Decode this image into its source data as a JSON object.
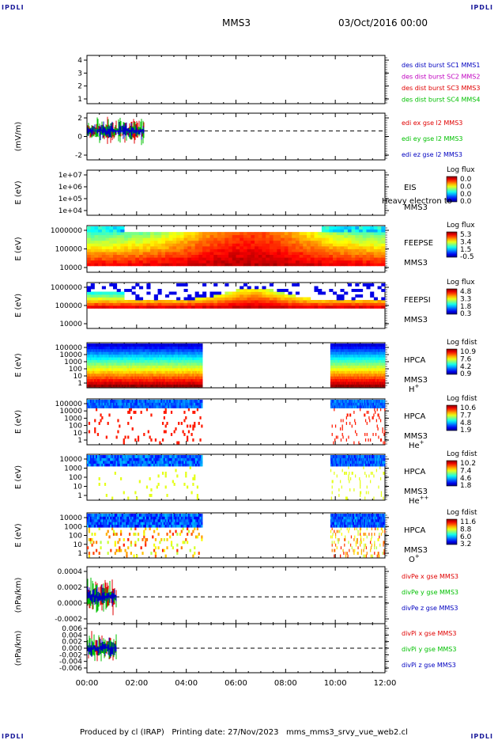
{
  "header": {
    "left_corner": "IPDLI",
    "right_corner": "IPDLI",
    "spacecraft": "MMS3",
    "datetime": "03/Oct/2016 00:00"
  },
  "footer": {
    "text": "Produced by cl (IRAP)   Printing date: 27/Nov/2023   mms_mms3_srvy_vue_web2.cl",
    "left_corner": "IPDLI",
    "right_corner": "IPDLI"
  },
  "colors": {
    "red": "#e00000",
    "green": "#00c000",
    "blue": "#0000c0",
    "magenta": "#c000c0"
  },
  "chart_data": [
    {
      "type": "line",
      "panel": "des-dist-burst",
      "ylabel": "",
      "yticks": [
        "1",
        "2",
        "3",
        "4"
      ],
      "ylim": [
        1,
        4
      ],
      "legend": [
        {
          "label": "des dist burst SC1 MMS1",
          "color": "#0000c0"
        },
        {
          "label": "des dist burst SC2 MMS2",
          "color": "#c000c0"
        },
        {
          "label": "des dist burst SC3 MMS3",
          "color": "#e00000"
        },
        {
          "label": "des dist burst SC4 MMS4",
          "color": "#00c000"
        }
      ],
      "series": []
    },
    {
      "type": "line",
      "panel": "edi-e-field",
      "ylabel": "(mV/m)",
      "yticks": [
        "-2",
        "0",
        "2"
      ],
      "ylim": [
        -3,
        3
      ],
      "data_extent_hours": [
        0,
        2.3
      ],
      "legend": [
        {
          "label": "edi ex gse l2 MMS3",
          "color": "#e00000"
        },
        {
          "label": "edi ey gse l2 MMS3",
          "color": "#00c000"
        },
        {
          "label": "edi ez gse l2 MMS3",
          "color": "#0000c0"
        }
      ]
    },
    {
      "type": "heatmap",
      "panel": "eis",
      "ylabel": "E (eV)",
      "yticks": [
        "1e+04",
        "1e+05",
        "1e+06",
        "1e+07"
      ],
      "labels": [
        "EIS",
        "MMS3"
      ],
      "overlay_text": "Heavy electron to",
      "colorbar_title": "Log flux",
      "colorbar_ticks": [
        "0.0",
        "0.0",
        "0.0",
        "0.0"
      ]
    },
    {
      "type": "heatmap",
      "panel": "feepse",
      "ylabel": "E (eV)",
      "yticks": [
        "10000",
        "100000",
        "1000000"
      ],
      "labels": [
        "FEEPSE",
        "MMS3"
      ],
      "colorbar_title": "Log flux",
      "colorbar_ticks": [
        "5.3",
        "3.4",
        "1.5",
        "-0.5"
      ]
    },
    {
      "type": "heatmap",
      "panel": "feepsi",
      "ylabel": "E (eV)",
      "yticks": [
        "10000",
        "100000",
        "1000000"
      ],
      "labels": [
        "FEEPSI",
        "MMS3"
      ],
      "colorbar_title": "Log flux",
      "colorbar_ticks": [
        "4.8",
        "3.3",
        "1.8",
        "0.3"
      ]
    },
    {
      "type": "heatmap",
      "panel": "hpca-h",
      "ylabel": "E (eV)",
      "yticks": [
        "1",
        "10",
        "100",
        "1000",
        "10000",
        "100000"
      ],
      "labels": [
        "HPCA",
        "MMS3"
      ],
      "species": "H",
      "species_sup": "+",
      "data_extent_hours": [
        [
          0,
          4.65
        ],
        [
          9.8,
          12
        ]
      ],
      "colorbar_title": "Log fdist",
      "colorbar_ticks": [
        "10.9",
        "7.6",
        "4.2",
        "0.9"
      ]
    },
    {
      "type": "heatmap",
      "panel": "hpca-he",
      "ylabel": "E (eV)",
      "yticks": [
        "1",
        "10",
        "100",
        "1000",
        "10000",
        "100000"
      ],
      "labels": [
        "HPCA",
        "MMS3"
      ],
      "species": "He",
      "species_sup": "+",
      "data_extent_hours": [
        [
          0,
          4.65
        ],
        [
          9.8,
          12
        ]
      ],
      "colorbar_title": "Log fdist",
      "colorbar_ticks": [
        "10.6",
        "7.7",
        "4.8",
        "1.9"
      ]
    },
    {
      "type": "heatmap",
      "panel": "hpca-hepp",
      "ylabel": "E (eV)",
      "yticks": [
        "1",
        "10",
        "100",
        "1000",
        "10000"
      ],
      "labels": [
        "HPCA",
        "MMS3"
      ],
      "species": "He",
      "species_sup": "++",
      "data_extent_hours": [
        [
          0,
          4.65
        ],
        [
          9.8,
          12
        ]
      ],
      "colorbar_title": "Log fdist",
      "colorbar_ticks": [
        "10.2",
        "7.4",
        "4.6",
        "1.8"
      ]
    },
    {
      "type": "heatmap",
      "panel": "hpca-o",
      "ylabel": "E (eV)",
      "yticks": [
        "1",
        "10",
        "100",
        "1000",
        "10000"
      ],
      "labels": [
        "HPCA",
        "MMS3"
      ],
      "species": "O",
      "species_sup": "+",
      "data_extent_hours": [
        [
          0,
          4.65
        ],
        [
          9.8,
          12
        ]
      ],
      "colorbar_title": "Log fdist",
      "colorbar_ticks": [
        "11.6",
        "8.8",
        "6.0",
        "3.2"
      ]
    },
    {
      "type": "line",
      "panel": "divpe",
      "ylabel": "(nPa/km)",
      "yticks": [
        "-0.0002",
        "0.0000",
        "0.0002",
        "0.0004"
      ],
      "ylim": [
        -0.0004,
        0.0005
      ],
      "data_extent_hours": [
        0,
        1.2
      ],
      "legend": [
        {
          "label": "divPe x gse MMS3",
          "color": "#e00000"
        },
        {
          "label": "divPe y gse MMS3",
          "color": "#00c000"
        },
        {
          "label": "divPe z gse MMS3",
          "color": "#0000c0"
        }
      ]
    },
    {
      "type": "line",
      "panel": "divpi",
      "ylabel": "(nPa/km)",
      "yticks": [
        "-0.006",
        "-0.004",
        "-0.002",
        "0.000",
        "0.002",
        "0.004",
        "0.006"
      ],
      "ylim": [
        -0.007,
        0.007
      ],
      "data_extent_hours": [
        0,
        1.2
      ],
      "legend": [
        {
          "label": "divPi x gse MMS3",
          "color": "#e00000"
        },
        {
          "label": "divPi y gse MMS3",
          "color": "#00c000"
        },
        {
          "label": "divPi z gse MMS3",
          "color": "#0000c0"
        }
      ]
    }
  ],
  "x_axis": {
    "ticks": [
      "00:00",
      "02:00",
      "04:00",
      "06:00",
      "08:00",
      "10:00",
      "12:00"
    ],
    "xlim_hours": [
      0,
      12
    ]
  }
}
